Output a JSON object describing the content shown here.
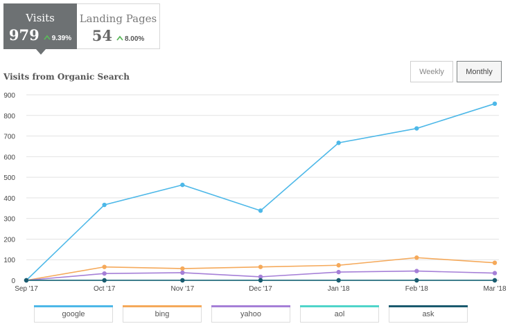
{
  "tabs": [
    {
      "title": "Visits",
      "value": "979",
      "change": "9.39%"
    },
    {
      "title": "Landing Pages",
      "value": "54",
      "change": "8.00%"
    }
  ],
  "section_title": "Visits from Organic Search",
  "buttons": {
    "weekly": "Weekly",
    "monthly": "Monthly",
    "selected": "Monthly"
  },
  "colors": {
    "up_arrow": "#5cb85c",
    "active_tab": "#6d7173"
  },
  "chart_data": {
    "type": "line",
    "title": "",
    "xlabel": "",
    "ylabel": "",
    "categories": [
      "Sep '17",
      "Oct '17",
      "Nov '17",
      "Dec '17",
      "Jan '18",
      "Feb '18",
      "Mar '18"
    ],
    "yticks": [
      0,
      100,
      200,
      300,
      400,
      500,
      600,
      700,
      800,
      900
    ],
    "ylim": [
      0,
      900
    ],
    "grid": true,
    "legend_position": "bottom",
    "series": [
      {
        "name": "google",
        "color": "#4db8e8",
        "values": [
          0,
          366,
          463,
          338,
          667,
          737,
          857
        ]
      },
      {
        "name": "bing",
        "color": "#f5a95a",
        "values": [
          0,
          65,
          57,
          65,
          73,
          110,
          85
        ]
      },
      {
        "name": "yahoo",
        "color": "#a57fd7",
        "values": [
          0,
          33,
          37,
          17,
          40,
          45,
          35
        ]
      },
      {
        "name": "aol",
        "color": "#4fd4c9",
        "values": [
          0,
          0,
          0,
          0,
          0,
          0,
          0
        ]
      },
      {
        "name": "ask",
        "color": "#1a5a6e",
        "values": [
          0,
          0,
          0,
          0,
          0,
          0,
          0
        ]
      }
    ]
  }
}
